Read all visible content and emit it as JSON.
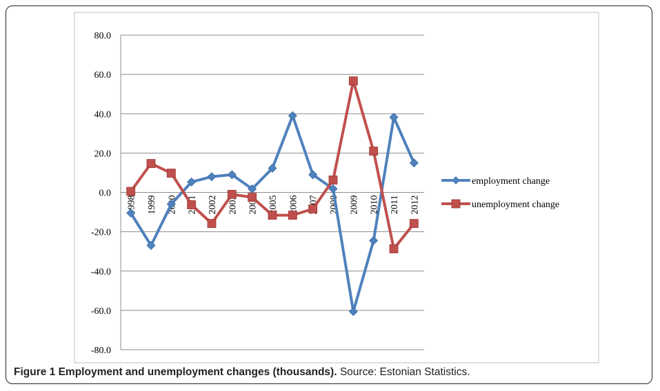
{
  "chart_data": {
    "type": "line",
    "categories": [
      "1998",
      "1999",
      "2000",
      "2001",
      "2002",
      "2003",
      "2004",
      "2005",
      "2006",
      "2007",
      "2008",
      "2009",
      "2010",
      "2011",
      "2012"
    ],
    "series": [
      {
        "name": "employment change",
        "color": "#4f81bd",
        "marker": "diamond",
        "values": [
          -10.5,
          -27,
          -6,
          5.3,
          8,
          9,
          1.8,
          12.3,
          39,
          9,
          1.8,
          -60.6,
          -24.5,
          38.2,
          15
        ]
      },
      {
        "name": "unemployment change",
        "color": "#c0504d",
        "marker": "square",
        "values": [
          0.5,
          14.7,
          9.8,
          -6.3,
          -15.8,
          -1,
          -2.5,
          -11.6,
          -11.6,
          -8.4,
          6.3,
          56.7,
          21,
          -28.7,
          -15.8
        ]
      }
    ],
    "ylim": [
      -80,
      80
    ],
    "yticks": [
      {
        "value": -80,
        "label": "-80.0"
      },
      {
        "value": -60,
        "label": "-60.0"
      },
      {
        "value": -40,
        "label": "-40.0"
      },
      {
        "value": -20,
        "label": "-20.0"
      },
      {
        "value": 0,
        "label": "0.0"
      },
      {
        "value": 20,
        "label": "20.0"
      },
      {
        "value": 40,
        "label": "40.0"
      },
      {
        "value": 60,
        "label": "60.0"
      },
      {
        "value": 80,
        "label": "80.0"
      }
    ],
    "grid": true,
    "legend": "right"
  },
  "caption": {
    "label": "Figure 1 Employment and unemployment changes (thousands).",
    "text": "Source: Estonian Statistics."
  }
}
